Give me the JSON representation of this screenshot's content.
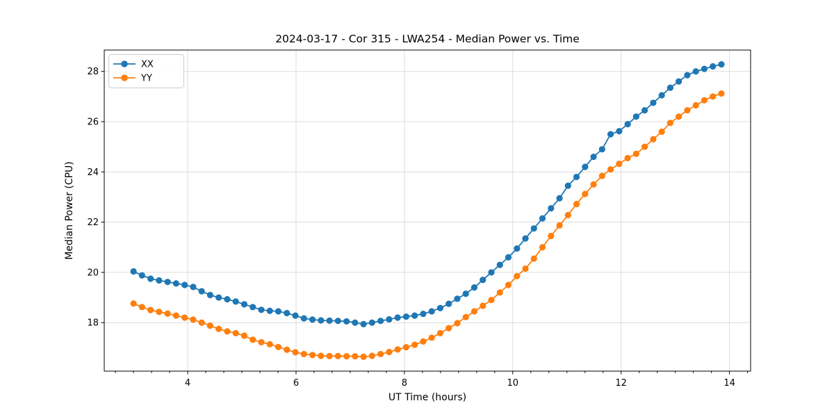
{
  "chart_data": {
    "type": "line",
    "title": "2024-03-17 - Cor 315 - LWA254 - Median Power vs. Time",
    "xlabel": "UT Time (hours)",
    "ylabel": "Median Power (CPU)",
    "xlim": [
      2.46,
      14.39
    ],
    "ylim": [
      16.07,
      28.85
    ],
    "x_major_ticks": [
      4,
      6,
      8,
      10,
      12,
      14
    ],
    "x_minor_step": 0.333333,
    "y_major_ticks": [
      18,
      20,
      22,
      24,
      26,
      28
    ],
    "grid": true,
    "legend_position": "upper-left",
    "x": [
      3.0,
      3.157,
      3.315,
      3.472,
      3.629,
      3.786,
      3.944,
      4.101,
      4.258,
      4.415,
      4.573,
      4.73,
      4.887,
      5.044,
      5.202,
      5.359,
      5.516,
      5.673,
      5.831,
      5.988,
      6.145,
      6.303,
      6.46,
      6.617,
      6.774,
      6.932,
      7.089,
      7.246,
      7.403,
      7.561,
      7.718,
      7.875,
      8.032,
      8.19,
      8.347,
      8.504,
      8.661,
      8.819,
      8.976,
      9.133,
      9.29,
      9.448,
      9.605,
      9.762,
      9.919,
      10.077,
      10.234,
      10.391,
      10.548,
      10.706,
      10.863,
      11.02,
      11.177,
      11.335,
      11.492,
      11.649,
      11.806,
      11.964,
      12.121,
      12.278,
      12.435,
      12.593,
      12.75,
      12.907,
      13.064,
      13.222,
      13.379,
      13.536,
      13.693,
      13.851
    ],
    "series": [
      {
        "name": "XX",
        "color": "#1f77b4",
        "values": [
          20.04,
          19.88,
          19.75,
          19.68,
          19.62,
          19.56,
          19.5,
          19.42,
          19.25,
          19.1,
          19.0,
          18.93,
          18.84,
          18.73,
          18.62,
          18.51,
          18.47,
          18.45,
          18.38,
          18.28,
          18.17,
          18.12,
          18.09,
          18.08,
          18.07,
          18.05,
          18.0,
          17.94,
          18.0,
          18.07,
          18.13,
          18.2,
          18.24,
          18.28,
          18.35,
          18.45,
          18.58,
          18.75,
          18.95,
          19.15,
          19.4,
          19.7,
          20.0,
          20.3,
          20.6,
          20.95,
          21.35,
          21.75,
          22.15,
          22.55,
          22.95,
          23.45,
          23.8,
          24.2,
          24.6,
          24.9,
          25.5,
          25.62,
          25.9,
          26.2,
          26.45,
          26.75,
          27.05,
          27.35,
          27.6,
          27.85,
          28.0,
          28.1,
          28.2,
          28.28
        ]
      },
      {
        "name": "YY",
        "color": "#ff7f0e",
        "values": [
          18.76,
          18.62,
          18.5,
          18.43,
          18.36,
          18.28,
          18.2,
          18.12,
          18.0,
          17.88,
          17.75,
          17.65,
          17.58,
          17.48,
          17.32,
          17.22,
          17.14,
          17.03,
          16.92,
          16.82,
          16.75,
          16.71,
          16.68,
          16.67,
          16.67,
          16.66,
          16.66,
          16.64,
          16.68,
          16.75,
          16.83,
          16.93,
          17.02,
          17.12,
          17.25,
          17.4,
          17.58,
          17.78,
          17.98,
          18.22,
          18.45,
          18.67,
          18.9,
          19.2,
          19.5,
          19.85,
          20.15,
          20.55,
          21.0,
          21.45,
          21.87,
          22.28,
          22.72,
          23.12,
          23.5,
          23.84,
          24.1,
          24.32,
          24.55,
          24.72,
          25.0,
          25.3,
          25.6,
          25.95,
          26.2,
          26.45,
          26.65,
          26.85,
          27.0,
          27.12
        ]
      }
    ]
  }
}
